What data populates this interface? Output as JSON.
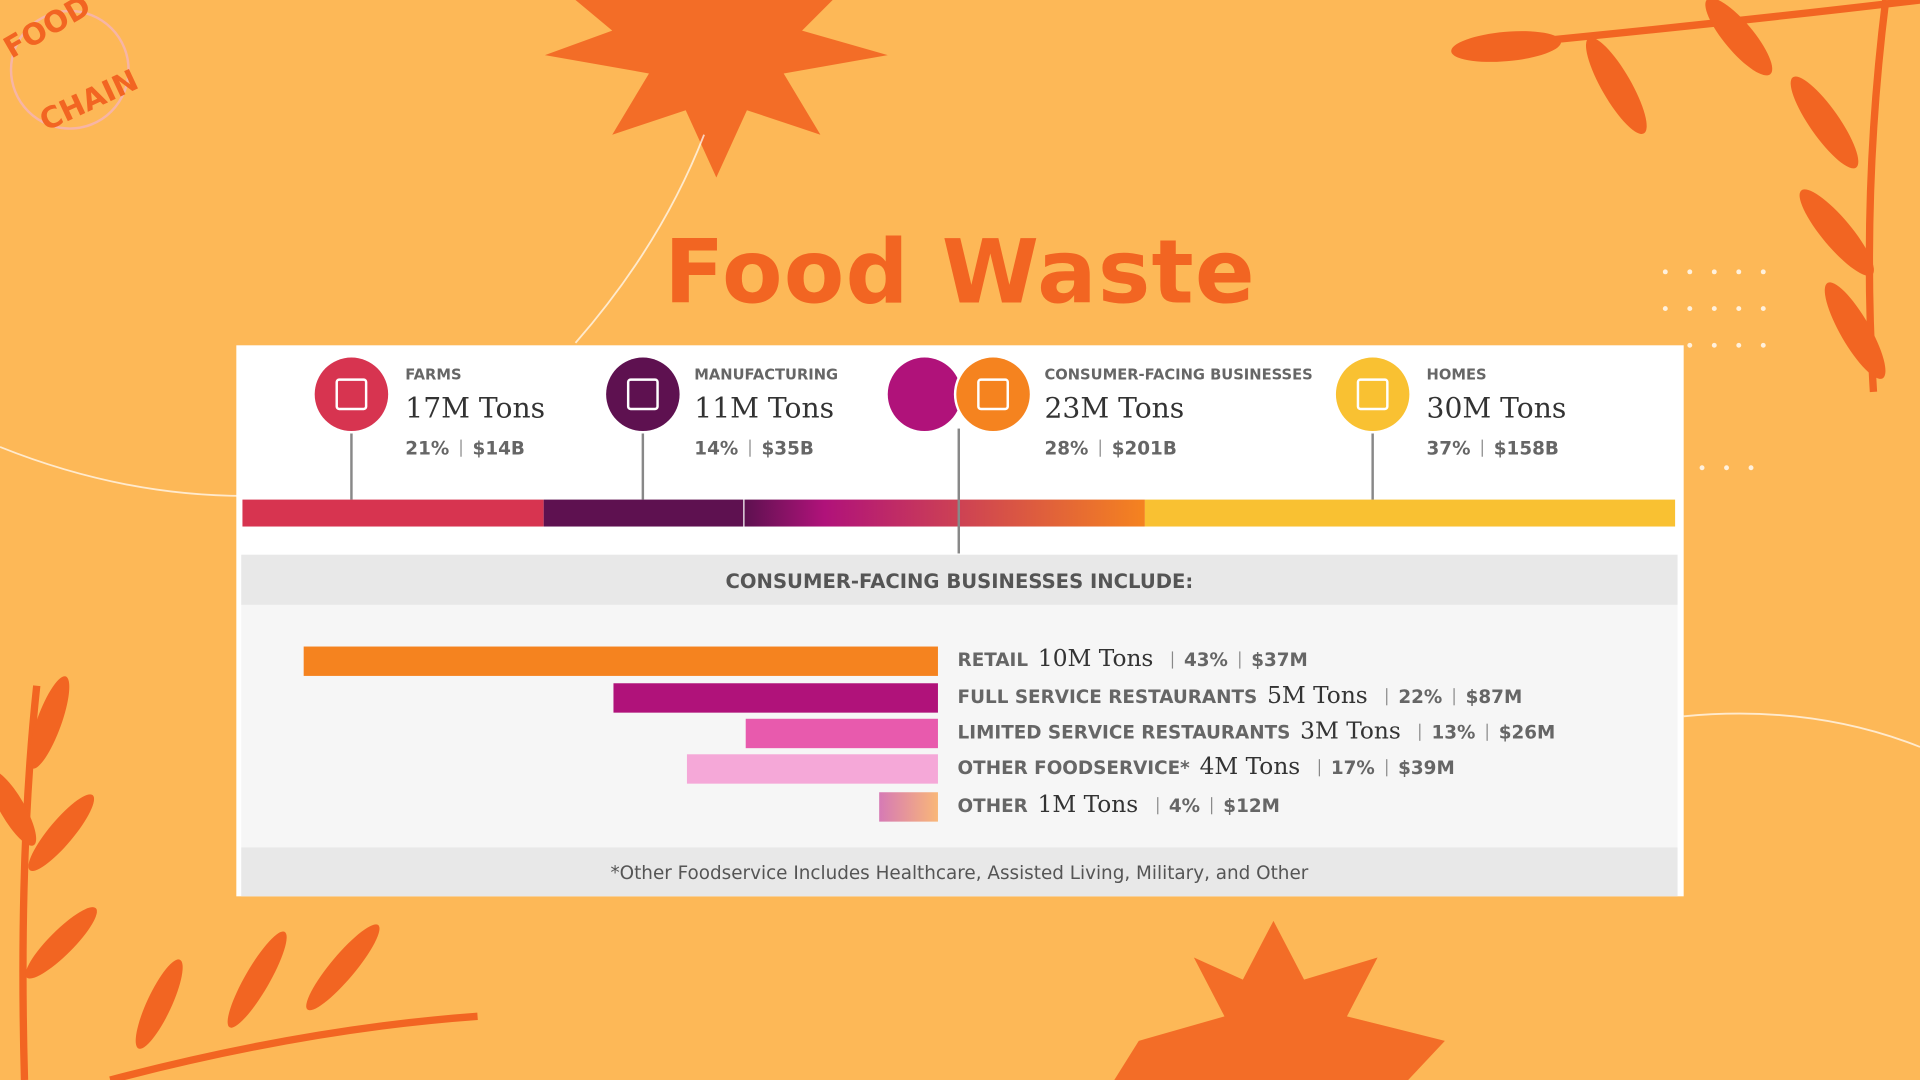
{
  "logo": {
    "line1": "FOOD",
    "line2": "CHAIN"
  },
  "title": "Food Waste",
  "segments": [
    {
      "name": "FARMS",
      "tons_label": "17M Tons",
      "percent": 21,
      "percent_label": "21%",
      "cost_label": "$14B",
      "color": "#d73450"
    },
    {
      "name": "MANUFACTURING",
      "tons_label": "11M Tons",
      "percent": 14,
      "percent_label": "14%",
      "cost_label": "$35B",
      "color": "#5e1150"
    },
    {
      "name": "CONSUMER-FACING BUSINESSES",
      "tons_label": "23M Tons",
      "percent": 28,
      "percent_label": "28%",
      "cost_label": "$201B",
      "color": "#f5831f"
    },
    {
      "name": "HOMES",
      "tons_label": "30M Tons",
      "percent": 37,
      "percent_label": "37%",
      "cost_label": "$158B",
      "color": "#f9c132"
    }
  ],
  "breakdown": {
    "heading": "CONSUMER-FACING BUSINESSES INCLUDE:",
    "items": [
      {
        "name": "RETAIL",
        "tons_label": "10M Tons",
        "percent": 43,
        "percent_label": "43%",
        "cost_label": "$37M",
        "color": "#f5831f"
      },
      {
        "name": "FULL SERVICE RESTAURANTS",
        "tons_label": "5M Tons",
        "percent": 22,
        "percent_label": "22%",
        "cost_label": "$87M",
        "color": "#b0127a"
      },
      {
        "name": "LIMITED SERVICE RESTAURANTS",
        "tons_label": "3M Tons",
        "percent": 13,
        "percent_label": "13%",
        "cost_label": "$26M",
        "color": "#e85aad"
      },
      {
        "name": "OTHER FOODSERVICE*",
        "tons_label": "4M Tons",
        "percent": 17,
        "percent_label": "17%",
        "cost_label": "$39M",
        "color": "#f5a8d8"
      },
      {
        "name": "OTHER",
        "tons_label": "1M Tons",
        "percent": 4,
        "percent_label": "4%",
        "cost_label": "$12M",
        "color": "#e9a58f"
      }
    ],
    "footnote": "*Other Foodservice Includes Healthcare, Assisted Living, Military, and Other"
  }
}
